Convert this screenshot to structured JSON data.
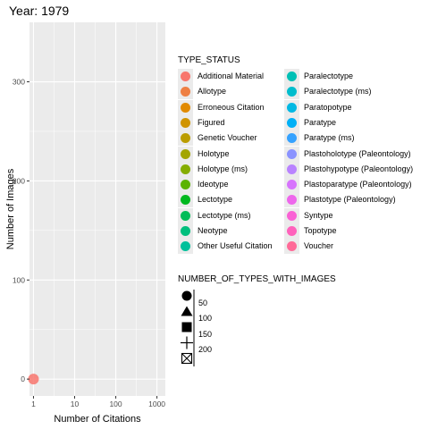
{
  "title": "Year: 1979",
  "chart_data": {
    "type": "scatter",
    "x_scale": "log10",
    "xlim": [
      0.8,
      1600
    ],
    "ylim": [
      -17,
      360
    ],
    "xlabel": "Number of Citations",
    "ylabel": "Number of Images",
    "x_ticks": [
      {
        "value": 1,
        "label": "1"
      },
      {
        "value": 10,
        "label": "10"
      },
      {
        "value": 100,
        "label": "100"
      },
      {
        "value": 1000,
        "label": "1000"
      }
    ],
    "y_ticks": [
      {
        "value": 0,
        "label": "0"
      },
      {
        "value": 100,
        "label": "100"
      },
      {
        "value": 200,
        "label": "200"
      },
      {
        "value": 300,
        "label": "300"
      }
    ],
    "grid": true,
    "legend_position": "right",
    "points": [
      {
        "x": 1,
        "y": 0,
        "type_status": "Additional Material",
        "color": "#F8766D"
      }
    ]
  },
  "legend_type": {
    "title": "TYPE_STATUS",
    "col1": [
      {
        "label": "Additional Material",
        "color": "#F8766D"
      },
      {
        "label": "Allotype",
        "color": "#EE8044"
      },
      {
        "label": "Erroneous Citation",
        "color": "#E18A00"
      },
      {
        "label": "Figured",
        "color": "#D09400"
      },
      {
        "label": "Genetic Voucher",
        "color": "#BB9D00"
      },
      {
        "label": "Holotype",
        "color": "#A3A500"
      },
      {
        "label": "Holotype (ms)",
        "color": "#85AD00"
      },
      {
        "label": "Ideotype",
        "color": "#5BB300"
      },
      {
        "label": "Lectotype",
        "color": "#00B81F"
      },
      {
        "label": "Lectotype (ms)",
        "color": "#00BC59"
      },
      {
        "label": "Neotype",
        "color": "#00BF7D"
      },
      {
        "label": "Other Useful Citation",
        "color": "#00C09B"
      }
    ],
    "col2": [
      {
        "label": "Paralectotype",
        "color": "#00C0B5"
      },
      {
        "label": "Paralectotype (ms)",
        "color": "#00BDCD"
      },
      {
        "label": "Paratopotype",
        "color": "#00B8E3"
      },
      {
        "label": "Paratype",
        "color": "#00B0F6"
      },
      {
        "label": "Paratype (ms)",
        "color": "#35A2FF"
      },
      {
        "label": "Plastoholotype (Paleontology)",
        "color": "#8B93FF"
      },
      {
        "label": "Plastohypotype (Paleontology)",
        "color": "#B983FF"
      },
      {
        "label": "Plastoparatype (Paleontology)",
        "color": "#D774FD"
      },
      {
        "label": "Plastotype (Paleontology)",
        "color": "#EE67EC"
      },
      {
        "label": "Syntype",
        "color": "#FA62D5"
      },
      {
        "label": "Topotype",
        "color": "#FF62BC"
      },
      {
        "label": "Voucher",
        "color": "#FF6A98"
      }
    ]
  },
  "legend_shape": {
    "title": "NUMBER_OF_TYPES_WITH_IMAGES",
    "items": [
      {
        "label": "50",
        "shape": "circle"
      },
      {
        "label": "100",
        "shape": "triangle"
      },
      {
        "label": "150",
        "shape": "square"
      },
      {
        "label": "200",
        "shape": "plus"
      },
      {
        "label": "",
        "shape": "square-cross"
      }
    ]
  }
}
